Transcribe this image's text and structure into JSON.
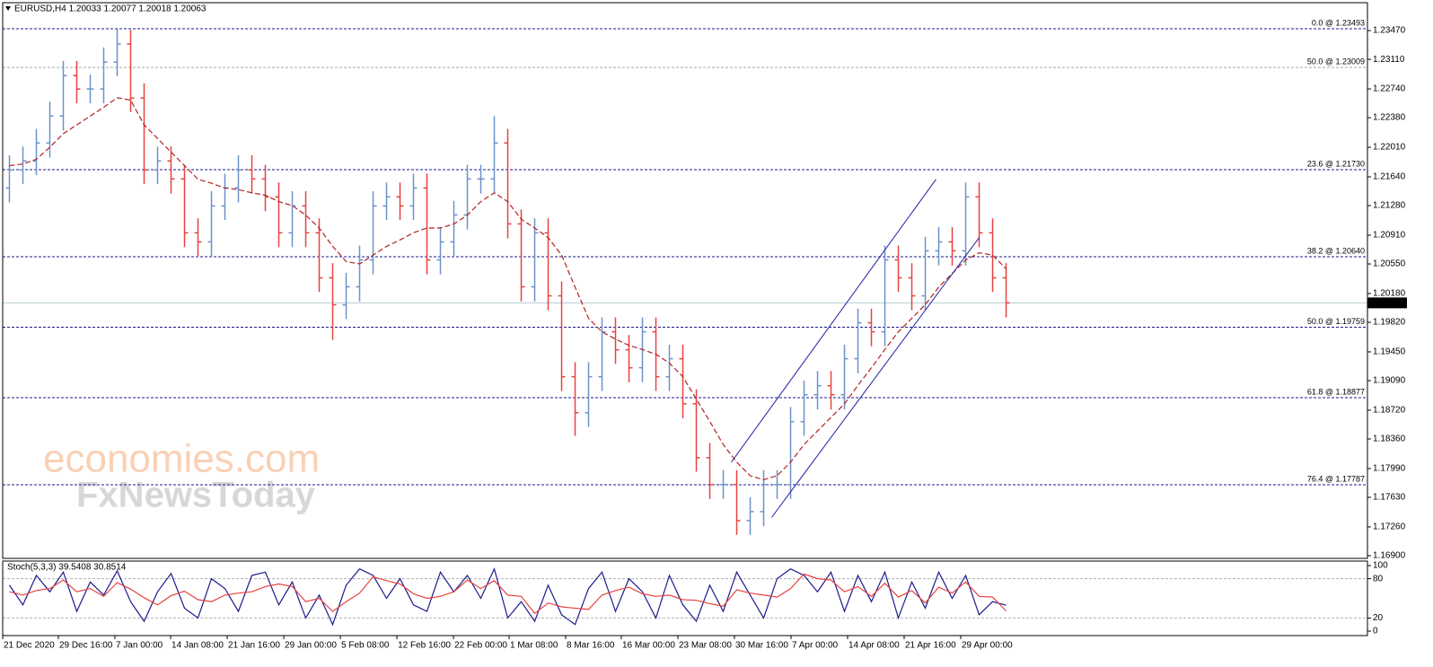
{
  "chart_data": [
    {
      "type": "ohlc",
      "title": "EURUSD,H4  1.20033 1.20077 1.20018 1.20063",
      "watermark": [
        "economies.com",
        "FxNewsToday"
      ],
      "up_color": "#6a93c9",
      "down_color": "#e8423f",
      "xlim": [
        -0.5,
        100.83
      ],
      "xticks": [
        {
          "value": -0.5,
          "label": "21 Dec 2020"
        },
        {
          "value": 3.63,
          "label": "29 Dec 16:00"
        },
        {
          "value": 7.83,
          "label": "7 Jan 00:00"
        },
        {
          "value": 11.97,
          "label": "14 Jan 08:00"
        },
        {
          "value": 16.17,
          "label": "21 Jan 16:00"
        },
        {
          "value": 20.37,
          "label": "29 Jan 00:00"
        },
        {
          "value": 24.57,
          "label": "5 Feb 08:00"
        },
        {
          "value": 28.77,
          "label": "12 Feb 16:00"
        },
        {
          "value": 32.97,
          "label": "22 Feb 00:00"
        },
        {
          "value": 37.1,
          "label": "1 Mar 08:00"
        },
        {
          "value": 41.3,
          "label": "8 Mar 16:00"
        },
        {
          "value": 45.43,
          "label": "16 Mar 00:00"
        },
        {
          "value": 49.63,
          "label": "23 Mar 08:00"
        },
        {
          "value": 53.83,
          "label": "30 Mar 16:00"
        },
        {
          "value": 58.03,
          "label": "7 Apr 00:00"
        },
        {
          "value": 62.23,
          "label": "14 Apr 08:00"
        },
        {
          "value": 66.43,
          "label": "21 Apr 16:00"
        },
        {
          "value": 70.63,
          "label": "29 Apr 00:00"
        }
      ],
      "ylim": [
        1.16866,
        1.23819
      ],
      "yticks": [
        {
          "value": 1.2347,
          "label": "1.23470"
        },
        {
          "value": 1.2311,
          "label": "1.23110"
        },
        {
          "value": 1.2274,
          "label": "1.22740"
        },
        {
          "value": 1.2238,
          "label": "1.22380"
        },
        {
          "value": 1.2201,
          "label": "1.22010"
        },
        {
          "value": 1.2164,
          "label": "1.21640"
        },
        {
          "value": 1.2128,
          "label": "1.21280"
        },
        {
          "value": 1.2091,
          "label": "1.20910"
        },
        {
          "value": 1.2055,
          "label": "1.20550"
        },
        {
          "value": 1.2018,
          "label": "1.20180"
        },
        {
          "value": 1.1982,
          "label": "1.19820"
        },
        {
          "value": 1.1945,
          "label": "1.19450"
        },
        {
          "value": 1.1909,
          "label": "1.19090"
        },
        {
          "value": 1.1872,
          "label": "1.18720"
        },
        {
          "value": 1.1836,
          "label": "1.18360"
        },
        {
          "value": 1.1799,
          "label": "1.17990"
        },
        {
          "value": 1.1763,
          "label": "1.17630"
        },
        {
          "value": 1.1726,
          "label": "1.17260"
        },
        {
          "value": 1.169,
          "label": "1.16900"
        }
      ],
      "grid": false,
      "open": [
        1.215,
        1.21726,
        1.21839,
        1.22064,
        1.22401,
        1.22907,
        1.22739,
        1.22739,
        1.23076,
        1.23301,
        1.22626,
        1.21726,
        1.21839,
        1.21614,
        1.20939,
        1.20826,
        1.21276,
        1.21501,
        1.21726,
        1.21614,
        1.21389,
        1.20939,
        1.21276,
        1.20939,
        1.20376,
        1.20039,
        1.20264,
        1.20601,
        1.21276,
        1.21389,
        1.21276,
        1.21501,
        1.20601,
        1.20826,
        1.21164,
        1.21614,
        1.21614,
        1.22064,
        1.21051,
        1.20264,
        1.20939,
        1.20151,
        1.19139,
        1.18689,
        1.19139,
        1.19701,
        1.19476,
        1.19251,
        1.19701,
        1.19139,
        1.19364,
        1.18801,
        1.18126,
        1.17789,
        1.17789,
        1.17339,
        1.17451,
        1.17789,
        1.17789,
        1.18576,
        1.18914,
        1.19026,
        1.18914,
        1.19364,
        1.19814,
        1.19701,
        1.20601,
        1.20376,
        1.20151,
        1.20714,
        1.20826,
        1.20714,
        1.21389,
        1.20939,
        1.20376
      ],
      "high": [
        1.2191,
        1.2202,
        1.2224,
        1.2258,
        1.2309,
        1.2309,
        1.2292,
        1.2326,
        1.2349,
        1.2348,
        1.2281,
        1.2202,
        1.2202,
        1.2179,
        1.2112,
        1.2146,
        1.2168,
        1.2191,
        1.2191,
        1.2179,
        1.2157,
        1.2146,
        1.2146,
        1.2112,
        1.2056,
        1.2044,
        1.2078,
        1.2146,
        1.2157,
        1.2157,
        1.2168,
        1.2168,
        1.2101,
        1.2134,
        1.2179,
        1.2179,
        1.224,
        1.2224,
        1.2123,
        1.2112,
        1.2112,
        1.2033,
        1.1932,
        1.1932,
        1.1988,
        1.1988,
        1.1966,
        1.1988,
        1.1988,
        1.1954,
        1.1954,
        1.1898,
        1.1831,
        1.1797,
        1.1797,
        1.1763,
        1.1797,
        1.1797,
        1.1876,
        1.1909,
        1.1921,
        1.1921,
        1.1954,
        1.1999,
        1.1999,
        1.2078,
        1.2078,
        1.2056,
        1.2089,
        1.2101,
        1.2101,
        1.2157,
        1.2157,
        1.2112,
        1.2056
      ],
      "low": [
        1.2132,
        1.2155,
        1.2166,
        1.2188,
        1.2222,
        1.2256,
        1.2256,
        1.2256,
        1.229,
        1.2245,
        1.2155,
        1.2155,
        1.2143,
        1.2076,
        1.2065,
        1.2065,
        1.211,
        1.2132,
        1.2143,
        1.2121,
        1.2076,
        1.2076,
        1.2076,
        1.202,
        1.196,
        1.1986,
        1.2008,
        1.2042,
        1.211,
        1.211,
        1.211,
        1.2042,
        1.2042,
        1.2065,
        1.2098,
        1.2143,
        1.2143,
        1.2087,
        1.2008,
        1.2008,
        1.1997,
        1.1896,
        1.184,
        1.1851,
        1.1896,
        1.193,
        1.1907,
        1.1907,
        1.1896,
        1.1896,
        1.1862,
        1.1795,
        1.1761,
        1.1761,
        1.1716,
        1.1716,
        1.1727,
        1.1761,
        1.1761,
        1.184,
        1.1873,
        1.1873,
        1.1873,
        1.1918,
        1.1952,
        1.1952,
        1.202,
        1.1997,
        1.1997,
        1.2053,
        1.2053,
        1.2053,
        1.2076,
        1.202,
        1.1988
      ],
      "close": [
        1.21726,
        1.21839,
        1.22064,
        1.22401,
        1.22907,
        1.22739,
        1.22739,
        1.23076,
        1.23301,
        1.22626,
        1.21726,
        1.21839,
        1.21614,
        1.20939,
        1.20826,
        1.21276,
        1.21501,
        1.21726,
        1.21614,
        1.21389,
        1.20939,
        1.21276,
        1.20939,
        1.20376,
        1.20039,
        1.20264,
        1.20601,
        1.21276,
        1.21389,
        1.21276,
        1.21501,
        1.20601,
        1.20826,
        1.21164,
        1.21614,
        1.21614,
        1.22064,
        1.21051,
        1.20264,
        1.20939,
        1.20151,
        1.19139,
        1.18689,
        1.19139,
        1.19701,
        1.19476,
        1.19251,
        1.19701,
        1.19139,
        1.19364,
        1.18801,
        1.18126,
        1.17789,
        1.17789,
        1.17339,
        1.17451,
        1.17789,
        1.17789,
        1.18576,
        1.18914,
        1.19026,
        1.18914,
        1.19364,
        1.19814,
        1.19701,
        1.20601,
        1.20376,
        1.20151,
        1.20714,
        1.20826,
        1.20714,
        1.21389,
        1.20939,
        1.20376,
        1.20063
      ],
      "moving_average": {
        "color": "#b22222",
        "values": [
          1.2178,
          1.218,
          1.2186,
          1.2201,
          1.2218,
          1.2229,
          1.224,
          1.2251,
          1.2263,
          1.226,
          1.2229,
          1.2212,
          1.2195,
          1.2178,
          1.2161,
          1.2156,
          1.215,
          1.2148,
          1.2144,
          1.2141,
          1.2133,
          1.2128,
          1.2116,
          1.21,
          1.2077,
          1.2058,
          1.2055,
          1.2066,
          1.2077,
          1.2085,
          1.2094,
          1.21,
          1.21,
          1.2105,
          1.2116,
          1.2133,
          1.2144,
          1.2133,
          1.2111,
          1.21,
          1.2088,
          1.2066,
          1.2026,
          1.1987,
          1.197,
          1.1961,
          1.1953,
          1.1948,
          1.1942,
          1.1931,
          1.1914,
          1.1886,
          1.1858,
          1.1829,
          1.1807,
          1.179,
          1.1785,
          1.179,
          1.1807,
          1.1829,
          1.1846,
          1.1863,
          1.188,
          1.1903,
          1.1925,
          1.1948,
          1.197,
          1.1987,
          1.2004,
          1.2026,
          1.2043,
          1.206,
          1.2069,
          1.2066,
          1.2049
        ]
      },
      "levels": [
        {
          "label": "0.0 @ 1.23493",
          "value": 1.23493,
          "color": "#1a1a8c"
        },
        {
          "label": "50.0 @ 1.23009",
          "value": 1.23009,
          "color": "#a8a8a8"
        },
        {
          "label": "23.6 @ 1.21730",
          "value": 1.2173,
          "color": "#1a1a8c"
        },
        {
          "label": "38.2 @ 1.20640",
          "value": 1.2064,
          "color": "#1a1a8c"
        },
        {
          "label": "50.0 @ 1.19759",
          "value": 1.19759,
          "color": "#1a1a8c"
        },
        {
          "label": "61.8 @ 1.18877",
          "value": 1.18877,
          "color": "#1a1a8c"
        },
        {
          "label": "76.4 @ 1.17787",
          "value": 1.17787,
          "color": "#1a1a8c"
        }
      ],
      "trendlines": [
        {
          "color": "#2020a0",
          "x": [
            53.6,
            68.8
          ],
          "y": [
            1.1807,
            1.2161
          ]
        },
        {
          "color": "#2020a0",
          "x": [
            56.6,
            72.0
          ],
          "y": [
            1.1738,
            1.2088
          ]
        }
      ],
      "current_price": 1.20063
    },
    {
      "type": "line",
      "title": "Stoch(5,3,3) 39.5408 30.8514",
      "xlim": [
        -0.5,
        100.83
      ],
      "ylim": [
        -6.8,
        105.5
      ],
      "yticks": [
        100,
        80,
        20,
        0
      ],
      "levels": [
        80,
        20
      ],
      "series": [
        {
          "color": "#1a1a8c",
          "values": [
            70,
            40,
            85,
            60,
            90,
            30,
            75,
            55,
            92,
            45,
            15,
            60,
            88,
            35,
            20,
            80,
            65,
            30,
            85,
            90,
            40,
            75,
            20,
            55,
            10,
            70,
            95,
            85,
            50,
            80,
            40,
            30,
            90,
            60,
            85,
            50,
            95,
            20,
            45,
            15,
            70,
            25,
            10,
            65,
            90,
            30,
            80,
            60,
            20,
            85,
            40,
            15,
            70,
            30,
            90,
            55,
            20,
            80,
            95,
            85,
            60,
            90,
            30,
            85,
            45,
            90,
            20,
            75,
            35,
            90,
            50,
            85,
            25,
            45,
            39.5408
          ]
        },
        {
          "color": "#e8423f",
          "values": [
            60,
            55,
            62,
            65,
            78,
            60,
            65,
            53,
            74,
            64,
            51,
            40,
            54,
            61,
            48,
            45,
            55,
            58,
            60,
            68,
            72,
            68,
            45,
            50,
            30,
            45,
            58,
            83,
            77,
            72,
            57,
            50,
            53,
            60,
            78,
            65,
            77,
            55,
            53,
            27,
            43,
            37,
            35,
            33,
            55,
            62,
            67,
            57,
            53,
            55,
            48,
            47,
            42,
            38,
            63,
            58,
            55,
            52,
            65,
            87,
            80,
            78,
            60,
            68,
            53,
            73,
            52,
            62,
            43,
            67,
            58,
            75,
            53,
            52,
            30.8514
          ]
        }
      ]
    }
  ]
}
